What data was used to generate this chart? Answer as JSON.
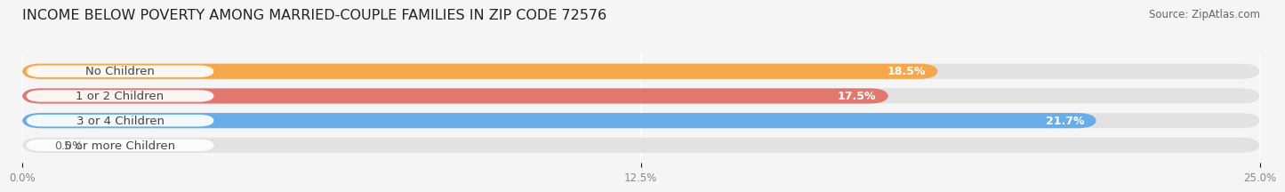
{
  "title": "INCOME BELOW POVERTY AMONG MARRIED-COUPLE FAMILIES IN ZIP CODE 72576",
  "source": "Source: ZipAtlas.com",
  "categories": [
    "No Children",
    "1 or 2 Children",
    "3 or 4 Children",
    "5 or more Children"
  ],
  "values": [
    18.5,
    17.5,
    21.7,
    0.0
  ],
  "bar_colors": [
    "#F5A84B",
    "#E07870",
    "#6AACE6",
    "#C9A8D4"
  ],
  "xlim": [
    0,
    25.0
  ],
  "xticks": [
    0.0,
    12.5,
    25.0
  ],
  "xticklabels": [
    "0.0%",
    "12.5%",
    "25.0%"
  ],
  "title_fontsize": 11.5,
  "source_fontsize": 8.5,
  "bar_label_fontsize": 9,
  "category_fontsize": 9.5,
  "bar_height": 0.62,
  "background_color": "#f5f5f5",
  "bar_bg_color": "#e2e2e2",
  "label_box_color": "#ffffff",
  "label_text_color": "#444444",
  "value_text_color": "#ffffff",
  "grid_color": "#ffffff",
  "tick_color": "#888888"
}
